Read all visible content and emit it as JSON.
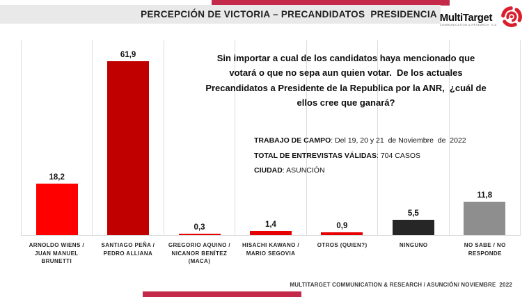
{
  "slide": {
    "title": "PERCEPCIÓN DE VICTORIA – PRECANDIDATOS  PRESIDENCIA",
    "logo": {
      "name": "MultiTarget",
      "tagline": "COMMUNICATION & RESEARCH  S.A.",
      "icon": "target-swirl-icon"
    },
    "question_lines": [
      "Sin importar a cual de los candidatos haya mencionado que",
      "votará o que no sepa aun quien votar.  De los actuales",
      "Precandidatos a Presidente de la Republica por la ANR,  ¿cuál de",
      "ellos cree que ganará?"
    ],
    "survey_info": [
      {
        "label": "TRABAJO DE CAMPO",
        "value": ": Del 19, 20 y 21  de Noviembre  de  2022"
      },
      {
        "label": "TOTAL DE ENTREVISTAS VÁLIDAS",
        "value": ": 704 CASOS"
      },
      {
        "label": "CIUDAD",
        "value": ": ASUNCIÓN"
      }
    ],
    "footer_credit": "MULTITARGET COMMUNICATION & RESEARCH / ASUNCIÓN/ NOVIEMBRE  2022"
  },
  "chart_data": {
    "type": "bar",
    "title": "PERCEPCIÓN DE VICTORIA – PRECANDIDATOS PRESIDENCIA",
    "unit": "percent",
    "categories": [
      "ARNOLDO WIENS / JUAN MANUEL BRUNETTI",
      "SANTIAGO PEÑA / PEDRO ALLIANA",
      "GREGORIO AQUINO / NICANOR BENÍTEZ (MACA)",
      "HISACHI KAWANO / MARIO SEGOVIA",
      "OTROS (QUIEN?)",
      "NINGUNO",
      "NO SABE / NO RESPONDE"
    ],
    "category_label_lines": [
      [
        "ARNOLDO WIENS /",
        "JUAN MANUEL",
        "BRUNETTI"
      ],
      [
        "SANTIAGO PEÑA /",
        "PEDRO ALLIANA"
      ],
      [
        "GREGORIO AQUINO /",
        "NICANOR BENÍTEZ",
        "(MACA)"
      ],
      [
        "HISACHI KAWANO /",
        "MARIO SEGOVIA"
      ],
      [
        "OTROS (QUIEN?)"
      ],
      [
        "NINGUNO"
      ],
      [
        "NO SABE / NO",
        "RESPONDE"
      ]
    ],
    "values": [
      18.2,
      61.9,
      0.3,
      1.4,
      0.9,
      5.5,
      11.8
    ],
    "value_labels": [
      "18,2",
      "61,9",
      "0,3",
      "1,4",
      "0,9",
      "5,5",
      "11,8"
    ],
    "bar_colors": [
      "#fe0000",
      "#c00000",
      "#e60000",
      "#e60000",
      "#e60000",
      "#262626",
      "#8e8e8e"
    ],
    "xlabel": "",
    "ylabel": "",
    "ylim": [
      0,
      70
    ],
    "grid": "vertical-category-separators",
    "legend": "none"
  },
  "colors": {
    "accent_red_bar": "#c4294a",
    "header_band_bg": "#e9e9e9",
    "gridline": "#dcdcdc",
    "logo_red": "#d91f2e"
  }
}
